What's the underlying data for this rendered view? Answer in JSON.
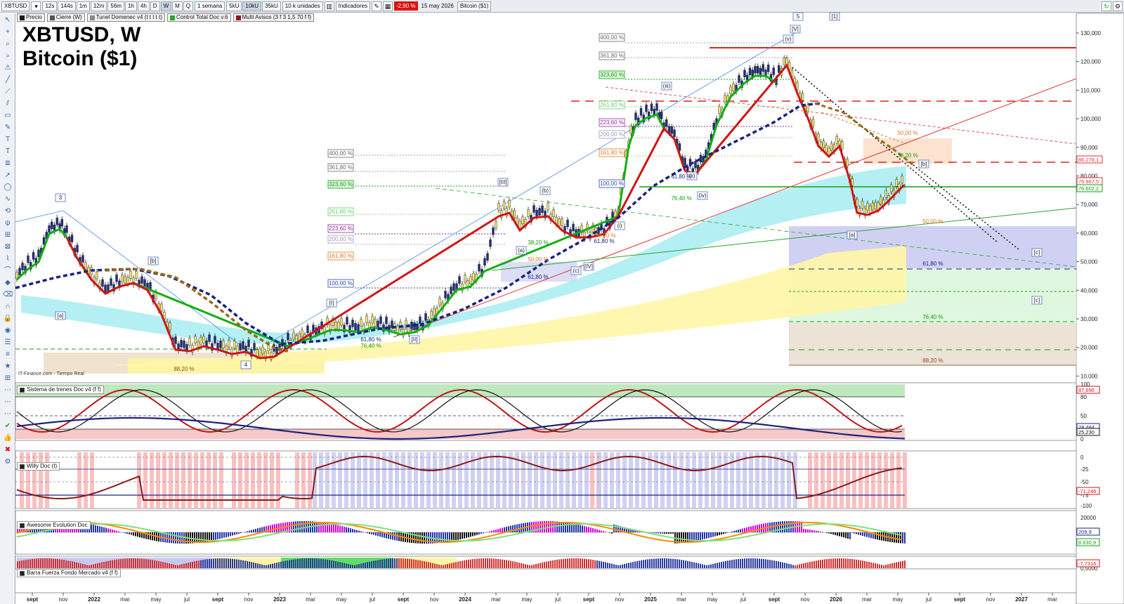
{
  "toolbar": {
    "symbol": "XBTUSD",
    "timeframes": [
      "12s",
      "144s",
      "1m",
      "12m",
      "56m",
      "1h",
      "4h",
      "D",
      "W",
      "M",
      "Q"
    ],
    "active_timeframe": "W",
    "period": "1 semana",
    "volumes": [
      "5kU",
      "10kU",
      "35kU"
    ],
    "active_volume": "10kU",
    "units": "10 k unidades",
    "indicators_label": "Indicadores",
    "change": "-2,90 %",
    "date": "15 may 2026",
    "instrument": "Bitcoin ($1)"
  },
  "legend": [
    "Precio",
    "Cierre (W)",
    "Tunel Domenec v4 (t t t t t)",
    "Control Total Doc v.6",
    "Multi Avisos (3 f 3 1,5 70 f f)"
  ],
  "title": {
    "line1": "XBTUSD, W",
    "line2": "Bitcoin ($1)"
  },
  "source": "IT-Finance.com - Tiempo Real",
  "price_axis": [
    "130,000",
    "120,000",
    "110,000",
    "100,000",
    "90,000",
    "80,000",
    "70,000",
    "60,000",
    "50,000",
    "40,000",
    "30,000",
    "20,000",
    "10,000"
  ],
  "price_tags": [
    "86.278,1",
    "76.967,5",
    "76.602,2"
  ],
  "time_axis": [
    "sept",
    "nov",
    "2022",
    "mar",
    "may",
    "jul",
    "sept",
    "nov",
    "2023",
    "mar",
    "may",
    "jul",
    "sept",
    "nov",
    "2024",
    "mar",
    "may",
    "jul",
    "sept",
    "nov",
    "2025",
    "mar",
    "may",
    "jul",
    "sept",
    "nov",
    "2026",
    "mar",
    "may",
    "jul",
    "sept",
    "nov",
    "2027",
    "mar"
  ],
  "fib_left": [
    "400,00 %",
    "361,80 %",
    "323,60 %",
    "261,80 %",
    "223,60 %",
    "200,00 %",
    "161,80 %",
    "100,00 %"
  ],
  "fib_top": [
    "400,00 %",
    "361,80 %",
    "323,60 %",
    "261,80 %",
    "223,60 %",
    "200,00 %",
    "161,80 %",
    "100,00 %"
  ],
  "fib_right": [
    "50,00 %",
    "38,20 %",
    "50,00 %",
    "61,80 %",
    "76,40 %",
    "88,20 %"
  ],
  "fib_misc": [
    "88,20 %",
    "38,20 %",
    "50,00 %",
    "61,80 %",
    "61,80 %",
    "76,40 %",
    "61,80 %",
    "76,40 %",
    "61,80 %",
    "38,20 %"
  ],
  "wave_labels": [
    "3",
    "[b]",
    "[a]",
    "4",
    "[I]",
    "[II]",
    "[III]",
    "(a)",
    "(b)",
    "(c)",
    "[IV]",
    "(i)",
    "(ii)",
    "(iii)",
    "(iv)",
    "(v)",
    "[V]",
    "5",
    "[1]",
    "[a]",
    "[b]",
    "[c]",
    "[c]"
  ],
  "panels": {
    "sistema": {
      "label": "Sistema de trenes Doc v4 (f f)",
      "axis": [
        "100",
        "80",
        "50",
        "20",
        "0"
      ],
      "tags": [
        "87,696",
        "28,484",
        "25,230"
      ]
    },
    "willy": {
      "label": "Willy Doc (t)",
      "axis": [
        "0",
        "-25",
        "-50",
        "-75",
        "-100"
      ],
      "tags": [
        "-71,246"
      ]
    },
    "awesome": {
      "label": "Awesome Evolution Doc",
      "axis": [
        "20000",
        "0"
      ],
      "tags": [
        "209,9",
        "8.630,9"
      ]
    },
    "barra": {
      "label": "Barra Fuerza Fondo Mercado v4 (f f)",
      "axis": [
        "0,5000"
      ],
      "tags": [
        "-7,7316"
      ]
    }
  },
  "colors": {
    "green": "#10b010",
    "red": "#d01515",
    "navy": "#1a237e",
    "brown": "#9a6a1a",
    "cyan": "#9fe7ee",
    "yellow": "#fff6a6",
    "lavender": "#c8c9f0"
  }
}
